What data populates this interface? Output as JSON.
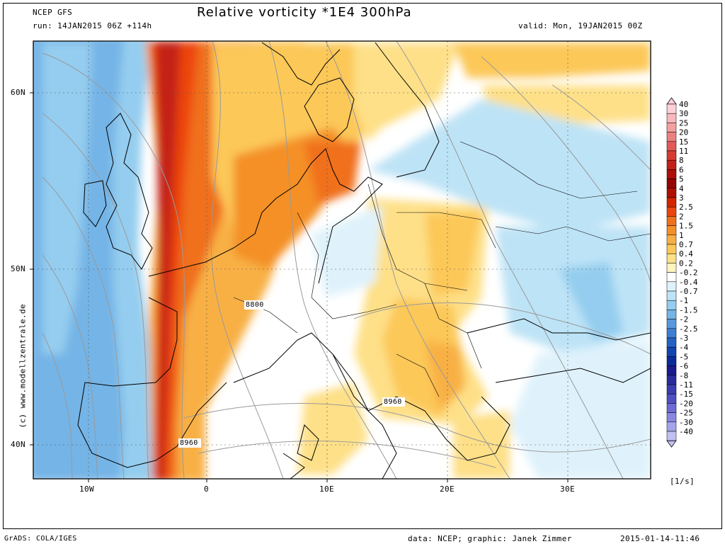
{
  "header": {
    "model": "NCEP GFS",
    "run": "run: 14JAN2015 06Z +114h",
    "title": "Relative vorticity *1E4 300hPa",
    "valid": "valid: Mon, 19JAN2015 00Z"
  },
  "watermark": "(c) www.modellzentrale.de",
  "axes": {
    "lon_ticks": [
      "10W",
      "0",
      "10E",
      "20E",
      "30E"
    ],
    "lat_ticks": [
      "60N",
      "50N",
      "40N"
    ]
  },
  "contour_labels": [
    "8800",
    "8960",
    "8960"
  ],
  "colorbar": {
    "unit": "[1/s]",
    "levels": [
      {
        "label": "40",
        "color": "#ffd0d8"
      },
      {
        "label": "30",
        "color": "#f8b8bc"
      },
      {
        "label": "25",
        "color": "#f4a0a0"
      },
      {
        "label": "20",
        "color": "#ec8080"
      },
      {
        "label": "15",
        "color": "#e45858"
      },
      {
        "label": "11",
        "color": "#d83a30"
      },
      {
        "label": "8",
        "color": "#c42018"
      },
      {
        "label": "6",
        "color": "#ac1008"
      },
      {
        "label": "5",
        "color": "#960400"
      },
      {
        "label": "4",
        "color": "#b01000"
      },
      {
        "label": "3",
        "color": "#d42400"
      },
      {
        "label": "2.5",
        "color": "#ec4410"
      },
      {
        "label": "2",
        "color": "#f0701c"
      },
      {
        "label": "1.5",
        "color": "#f49028"
      },
      {
        "label": "1",
        "color": "#f8b044"
      },
      {
        "label": "0.7",
        "color": "#fcc858"
      },
      {
        "label": "0.4",
        "color": "#fee088"
      },
      {
        "label": "0.2",
        "color": "#fff4c0"
      },
      {
        "label": "-0.2",
        "color": "#ffffff"
      },
      {
        "label": "-0.4",
        "color": "#dff2fb"
      },
      {
        "label": "-0.7",
        "color": "#bde3f6"
      },
      {
        "label": "-1",
        "color": "#94cdef"
      },
      {
        "label": "-1.5",
        "color": "#74b4e6"
      },
      {
        "label": "-2",
        "color": "#5898dc"
      },
      {
        "label": "-2.5",
        "color": "#3c7ed2"
      },
      {
        "label": "-3",
        "color": "#2462c4"
      },
      {
        "label": "-4",
        "color": "#1244b0"
      },
      {
        "label": "-5",
        "color": "#0a2c9a"
      },
      {
        "label": "-6",
        "color": "#1a1c8c"
      },
      {
        "label": "-8",
        "color": "#2a2c9c"
      },
      {
        "label": "-11",
        "color": "#3a3cb0"
      },
      {
        "label": "-15",
        "color": "#5050c4"
      },
      {
        "label": "-20",
        "color": "#6c6cd4"
      },
      {
        "label": "-25",
        "color": "#8888e0"
      },
      {
        "label": "-30",
        "color": "#a4a4ea"
      },
      {
        "label": "-40",
        "color": "#c0c0f2"
      }
    ]
  },
  "footer": {
    "left": "GrADS: COLA/IGES",
    "credit": "data: NCEP; graphic: Janek Zimmer",
    "timestamp": "2015-01-14-11:46"
  }
}
